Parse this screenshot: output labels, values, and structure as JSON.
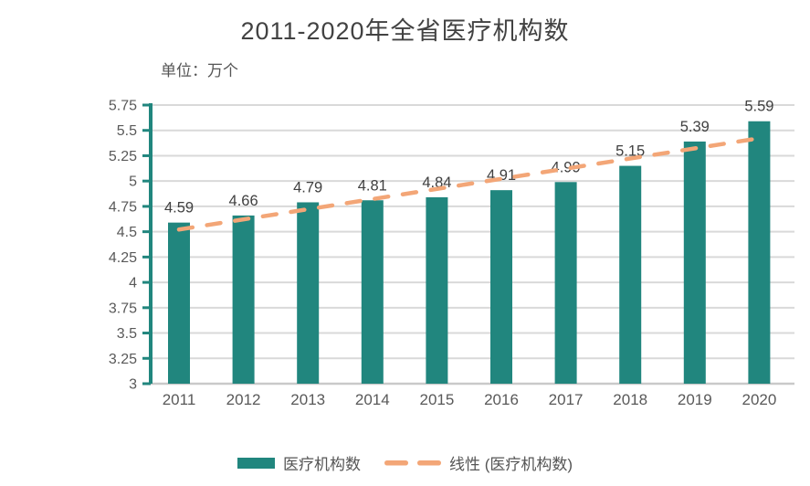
{
  "chart": {
    "title": "2011-2020年全省医疗机构数",
    "unit_label": "单位：万个"
  },
  "legend": {
    "bar_label": "医疗机构数",
    "line_label": "线性 (医疗机构数)"
  },
  "colors": {
    "bar": "#21867e",
    "trend": "#f3a677",
    "grid": "#d9d9d9",
    "bottom_axis": "#c9c9c9",
    "y_axis": "#21867e",
    "tick_label": "#595959",
    "data_label": "#404040"
  },
  "chart_data": {
    "type": "bar",
    "title": "2011-2020年全省医疗机构数",
    "unit": "万个",
    "categories": [
      "2011",
      "2012",
      "2013",
      "2014",
      "2015",
      "2016",
      "2017",
      "2018",
      "2019",
      "2020"
    ],
    "series": [
      {
        "name": "医疗机构数",
        "type": "bar",
        "values": [
          4.59,
          4.66,
          4.79,
          4.81,
          4.84,
          4.91,
          4.99,
          5.15,
          5.39,
          5.59
        ]
      },
      {
        "name": "线性 (医疗机构数)",
        "type": "linear-trendline",
        "style": "dashed"
      }
    ],
    "data_labels": [
      4.59,
      4.66,
      4.79,
      4.81,
      4.84,
      4.91,
      4.99,
      5.15,
      5.39,
      5.59
    ],
    "ylim": [
      3,
      5.75
    ],
    "ytick_step": 0.25,
    "ytick_labels": [
      "3",
      "3.25",
      "3.5",
      "3.75",
      "4",
      "4.25",
      "4.5",
      "4.75",
      "5",
      "5.25",
      "5.5",
      "5.75"
    ],
    "grid": true,
    "legend_position": "bottom"
  }
}
